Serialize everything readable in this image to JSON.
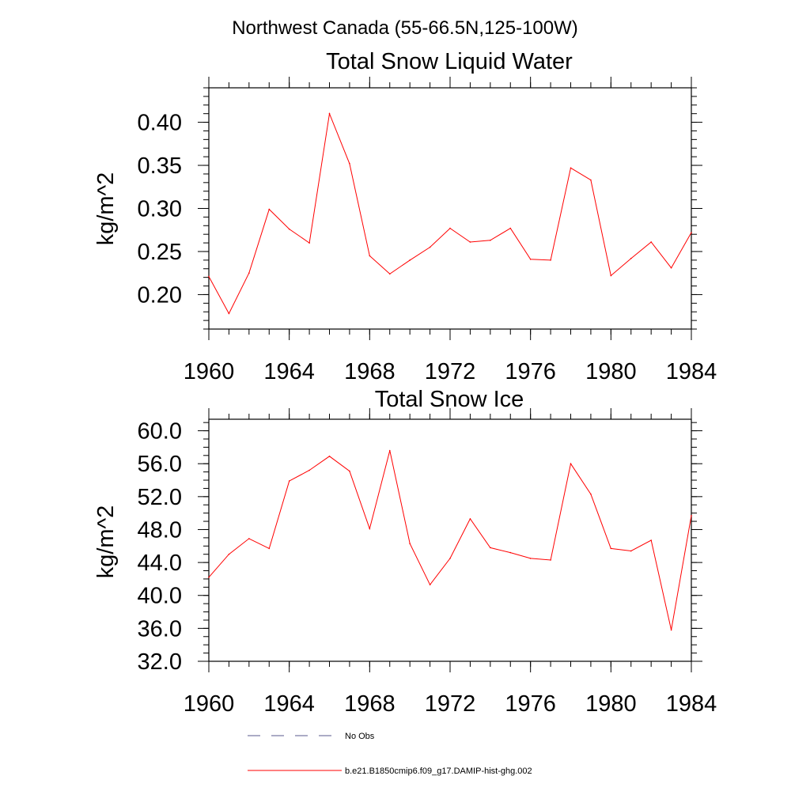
{
  "figure": {
    "title": "Northwest Canada (55-66.5N,125-100W)"
  },
  "chart_data": [
    {
      "type": "line",
      "title": "Total Snow Liquid Water",
      "xlabel": "",
      "ylabel": "kg/m^2",
      "xlim": [
        1960,
        1984
      ],
      "ylim": [
        0.16,
        0.44
      ],
      "x_ticks": [
        "1960",
        "1964",
        "1968",
        "1972",
        "1976",
        "1980",
        "1984"
      ],
      "x_tick_values": [
        1960,
        1964,
        1968,
        1972,
        1976,
        1980,
        1984
      ],
      "y_ticks": [
        "0.20",
        "0.25",
        "0.30",
        "0.35",
        "0.40"
      ],
      "y_tick_values": [
        0.2,
        0.25,
        0.3,
        0.35,
        0.4
      ],
      "y_minor_step": 0.01,
      "x_minor_step": 1,
      "grid": false,
      "x": [
        1960,
        1961,
        1962,
        1963,
        1964,
        1965,
        1966,
        1967,
        1968,
        1969,
        1970,
        1971,
        1972,
        1973,
        1974,
        1975,
        1976,
        1977,
        1978,
        1979,
        1980,
        1981,
        1982,
        1983,
        1984
      ],
      "series": [
        {
          "name": "b.e21.B1850cmip6.f09_g17.DAMIP-hist-ghg.002",
          "color": "#ff0000",
          "values": [
            0.221,
            0.178,
            0.225,
            0.299,
            0.276,
            0.26,
            0.41,
            0.352,
            0.245,
            0.224,
            0.24,
            0.255,
            0.277,
            0.261,
            0.263,
            0.277,
            0.241,
            0.24,
            0.347,
            0.333,
            0.222,
            0.242,
            0.261,
            0.231,
            0.272
          ]
        }
      ]
    },
    {
      "type": "line",
      "title": "Total Snow Ice",
      "xlabel": "",
      "ylabel": "kg/m^2",
      "xlim": [
        1960,
        1984
      ],
      "ylim": [
        32.0,
        61.4
      ],
      "x_ticks": [
        "1960",
        "1964",
        "1968",
        "1972",
        "1976",
        "1980",
        "1984"
      ],
      "x_tick_values": [
        1960,
        1964,
        1968,
        1972,
        1976,
        1980,
        1984
      ],
      "y_ticks": [
        "32.0",
        "36.0",
        "40.0",
        "44.0",
        "48.0",
        "52.0",
        "56.0",
        "60.0"
      ],
      "y_tick_values": [
        32,
        36,
        40,
        44,
        48,
        52,
        56,
        60
      ],
      "y_minor_step": 1,
      "x_minor_step": 1,
      "grid": false,
      "x": [
        1960,
        1961,
        1962,
        1963,
        1964,
        1965,
        1966,
        1967,
        1968,
        1969,
        1970,
        1971,
        1972,
        1973,
        1974,
        1975,
        1976,
        1977,
        1978,
        1979,
        1980,
        1981,
        1982,
        1983,
        1984
      ],
      "series": [
        {
          "name": "b.e21.B1850cmip6.f09_g17.DAMIP-hist-ghg.002",
          "color": "#ff0000",
          "values": [
            42.2,
            45.0,
            46.9,
            45.7,
            53.9,
            55.2,
            56.9,
            55.1,
            48.1,
            57.6,
            46.3,
            41.3,
            44.5,
            49.3,
            45.8,
            45.2,
            44.5,
            44.3,
            56.0,
            52.3,
            45.7,
            45.4,
            46.7,
            35.8,
            49.7
          ]
        }
      ]
    }
  ],
  "legend": {
    "placement": "bottom",
    "entries": [
      {
        "label": "No Obs",
        "color": "#5a5a8c",
        "style": "dashed"
      },
      {
        "label": "b.e21.B1850cmip6.f09_g17.DAMIP-hist-ghg.002",
        "color": "#ff0000",
        "style": "solid"
      }
    ]
  }
}
